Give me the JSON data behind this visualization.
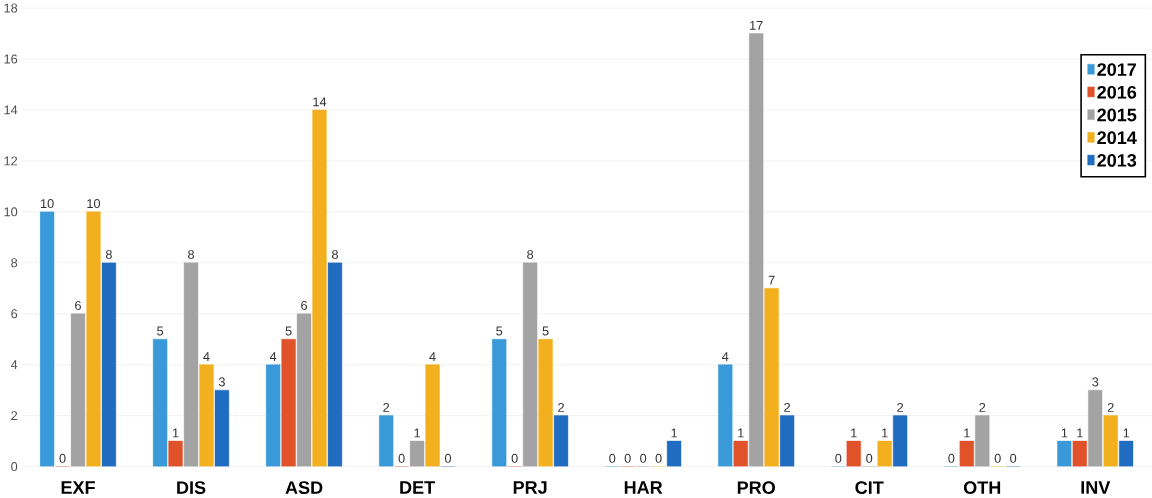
{
  "chart_data": {
    "type": "bar",
    "categories": [
      "EXF",
      "DIS",
      "ASD",
      "DET",
      "PRJ",
      "HAR",
      "PRO",
      "CIT",
      "OTH",
      "INV"
    ],
    "series": [
      {
        "name": "2017",
        "color": "#3a9ad9",
        "values": [
          10,
          5,
          4,
          2,
          5,
          0,
          4,
          0,
          0,
          1
        ]
      },
      {
        "name": "2016",
        "color": "#e0522a",
        "values": [
          0,
          1,
          5,
          0,
          0,
          0,
          1,
          1,
          1,
          1
        ]
      },
      {
        "name": "2015",
        "color": "#a3a3a3",
        "values": [
          6,
          8,
          6,
          1,
          8,
          0,
          17,
          0,
          2,
          3
        ]
      },
      {
        "name": "2014",
        "color": "#f2b01e",
        "values": [
          10,
          4,
          14,
          4,
          5,
          0,
          7,
          1,
          0,
          2
        ]
      },
      {
        "name": "2013",
        "color": "#1f6cc0",
        "values": [
          8,
          3,
          8,
          0,
          2,
          1,
          2,
          2,
          0,
          1
        ]
      }
    ],
    "ylim": [
      0,
      18
    ],
    "yticks": [
      0,
      2,
      4,
      6,
      8,
      10,
      12,
      14,
      16,
      18
    ],
    "grid": "y",
    "legend": "top right",
    "data_labels": true
  }
}
